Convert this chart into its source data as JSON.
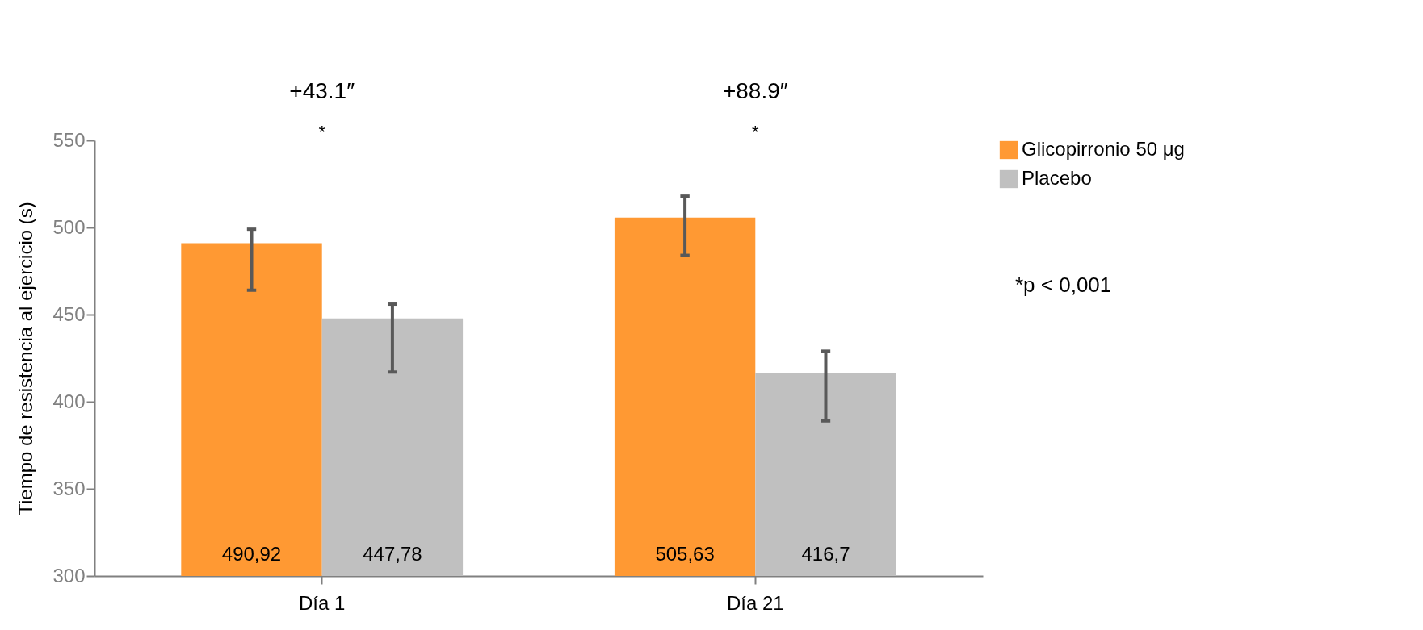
{
  "chart_data": {
    "type": "bar",
    "ylabel": "Tiempo de resistencia al ejercicio (s)",
    "categories": [
      "Día 1",
      "Día 21"
    ],
    "series": [
      {
        "name": "Glicopirronio 50 μg",
        "color": "#ff9933",
        "values": [
          490.92,
          505.63
        ],
        "value_labels": [
          "490,92",
          "505,63"
        ],
        "errors": [
          [
            464,
            499
          ],
          [
            484,
            518
          ]
        ]
      },
      {
        "name": "Placebo",
        "color": "#c0c0c0",
        "values": [
          447.78,
          416.7
        ],
        "value_labels": [
          "447,78",
          "416,7"
        ],
        "errors": [
          [
            417,
            456
          ],
          [
            389,
            429
          ]
        ]
      }
    ],
    "ylim": [
      300,
      550
    ],
    "yticks": [
      300,
      350,
      400,
      450,
      500,
      550
    ],
    "grid": false,
    "legend": "right",
    "annotations": [
      "+43.1″",
      "*",
      "+88.9″",
      "*",
      "*p < 0,001"
    ]
  }
}
